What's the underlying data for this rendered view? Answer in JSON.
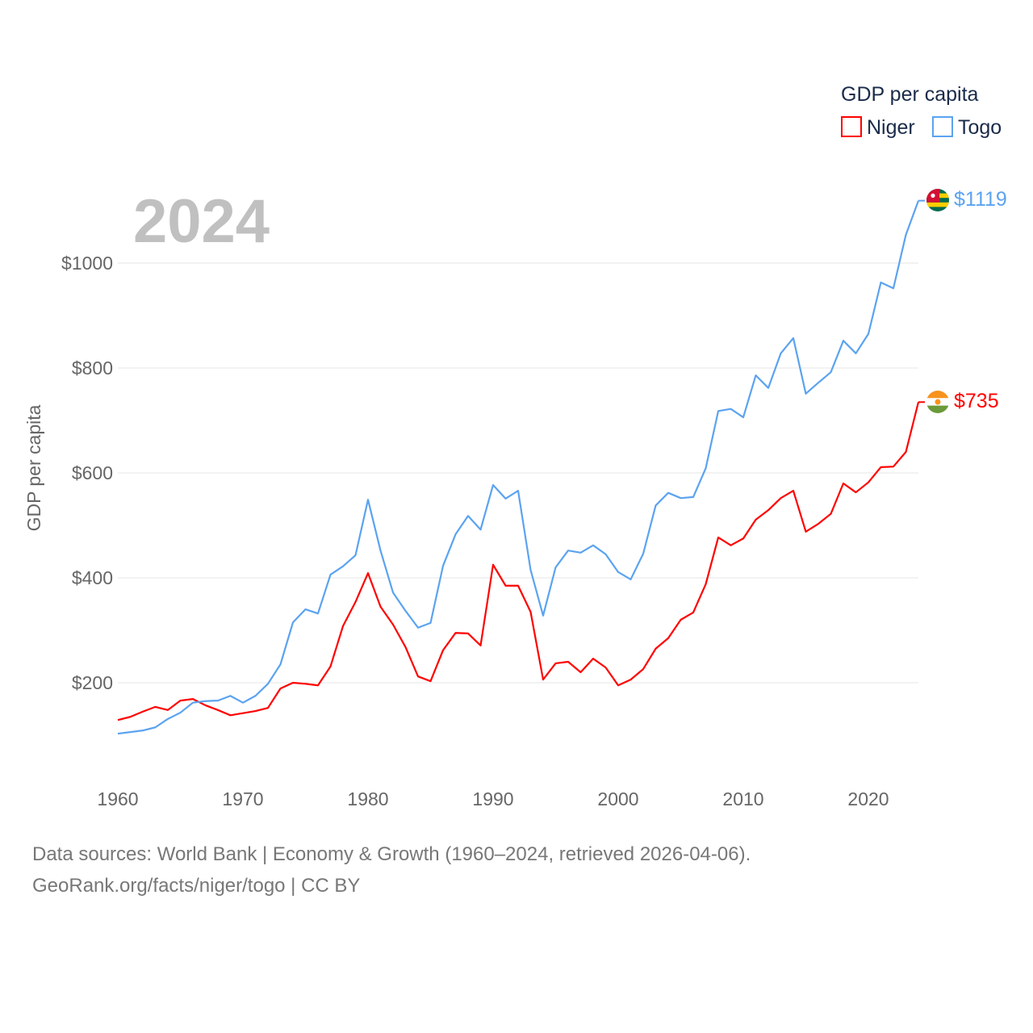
{
  "chart_data": {
    "type": "line",
    "title": "GDP per capita",
    "year_label": "2024",
    "xlabel": "",
    "ylabel": "GDP per capita",
    "xlim": [
      1960,
      2024
    ],
    "ylim": [
      0,
      1200
    ],
    "x_ticks": [
      "1960",
      "1970",
      "1980",
      "1990",
      "2000",
      "2010",
      "2020"
    ],
    "y_ticks": [
      {
        "value": 200,
        "label": "$200"
      },
      {
        "value": 400,
        "label": "$400"
      },
      {
        "value": 600,
        "label": "$600"
      },
      {
        "value": 800,
        "label": "$800"
      },
      {
        "value": 1000,
        "label": "$1000"
      }
    ],
    "grid": true,
    "legend_position": "top-right",
    "x": [
      1960,
      1961,
      1962,
      1963,
      1964,
      1965,
      1966,
      1967,
      1968,
      1969,
      1970,
      1971,
      1972,
      1973,
      1974,
      1975,
      1976,
      1977,
      1978,
      1979,
      1980,
      1981,
      1982,
      1983,
      1984,
      1985,
      1986,
      1987,
      1988,
      1989,
      1990,
      1991,
      1992,
      1993,
      1994,
      1995,
      1996,
      1997,
      1998,
      1999,
      2000,
      2001,
      2002,
      2003,
      2004,
      2005,
      2006,
      2007,
      2008,
      2009,
      2010,
      2011,
      2012,
      2013,
      2014,
      2015,
      2016,
      2017,
      2018,
      2019,
      2020,
      2021,
      2022,
      2023,
      2024
    ],
    "series": [
      {
        "name": "Niger",
        "color": "#ff0000",
        "end_label": "$735",
        "flag": "niger-flag",
        "values": [
          129,
          135,
          145,
          154,
          148,
          166,
          169,
          157,
          148,
          138,
          142,
          146,
          152,
          189,
          200,
          198,
          195,
          231,
          308,
          354,
          409,
          345,
          311,
          268,
          212,
          203,
          262,
          295,
          294,
          271,
          425,
          385,
          385,
          335,
          206,
          237,
          240,
          220,
          246,
          229,
          195,
          206,
          226,
          265,
          285,
          320,
          334,
          388,
          477,
          462,
          475,
          511,
          529,
          552,
          566,
          488,
          503,
          522,
          580,
          563,
          582,
          611,
          612,
          640,
          735
        ]
      },
      {
        "name": "Togo",
        "color": "#5ba3f0",
        "end_label": "$1119",
        "flag": "togo-flag",
        "values": [
          103,
          106,
          109,
          115,
          131,
          143,
          162,
          165,
          166,
          175,
          162,
          175,
          198,
          235,
          315,
          340,
          332,
          406,
          422,
          443,
          549,
          452,
          372,
          337,
          305,
          314,
          423,
          483,
          518,
          492,
          577,
          551,
          566,
          415,
          328,
          420,
          452,
          448,
          462,
          445,
          411,
          397,
          446,
          538,
          562,
          552,
          554,
          609,
          718,
          722,
          706,
          786,
          762,
          828,
          857,
          751,
          772,
          792,
          852,
          828,
          865,
          963,
          952,
          1054,
          1119
        ]
      }
    ]
  },
  "footer": {
    "line1": "Data sources: World Bank | Economy & Growth (1960–2024, retrieved 2026-04-06).",
    "line2": "GeoRank.org/facts/niger/togo | CC BY"
  }
}
